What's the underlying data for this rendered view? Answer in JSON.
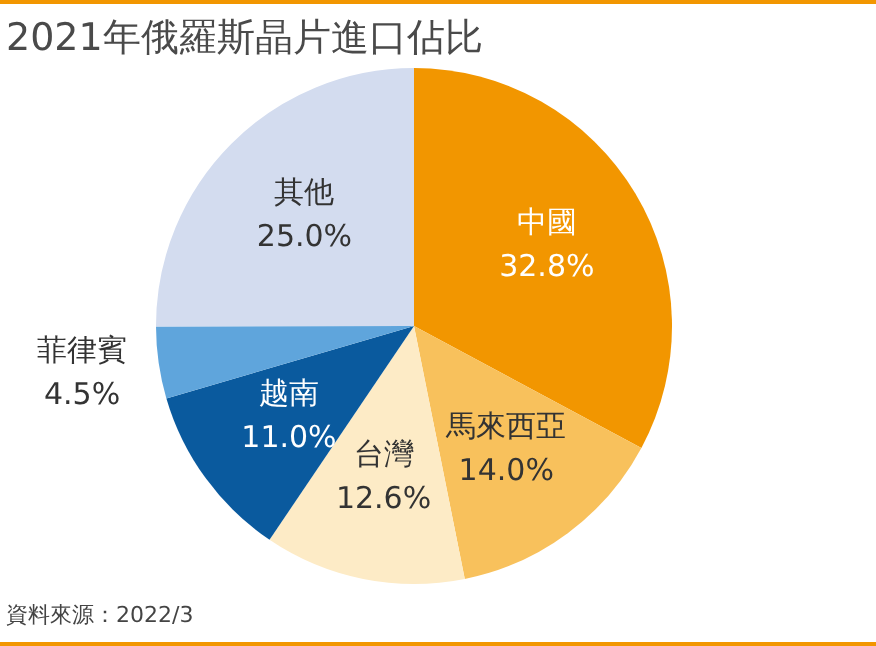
{
  "chart_data": {
    "type": "pie",
    "title": "2021年俄羅斯晶片進口佔比",
    "categories": [
      "中國",
      "馬來西亞",
      "台灣",
      "越南",
      "菲律賓",
      "其他"
    ],
    "values": [
      32.8,
      14.0,
      12.6,
      11.0,
      4.5,
      25.0
    ],
    "value_labels": [
      "32.8%",
      "14.0%",
      "12.6%",
      "11.0%",
      "4.5%",
      "25.0%"
    ],
    "colors": [
      "#f29600",
      "#f8c15c",
      "#fdebc6",
      "#0a5a9e",
      "#5fa5dc",
      "#d3dcef"
    ],
    "annotations": [
      "資料來源：2022/3"
    ],
    "legend": false
  }
}
